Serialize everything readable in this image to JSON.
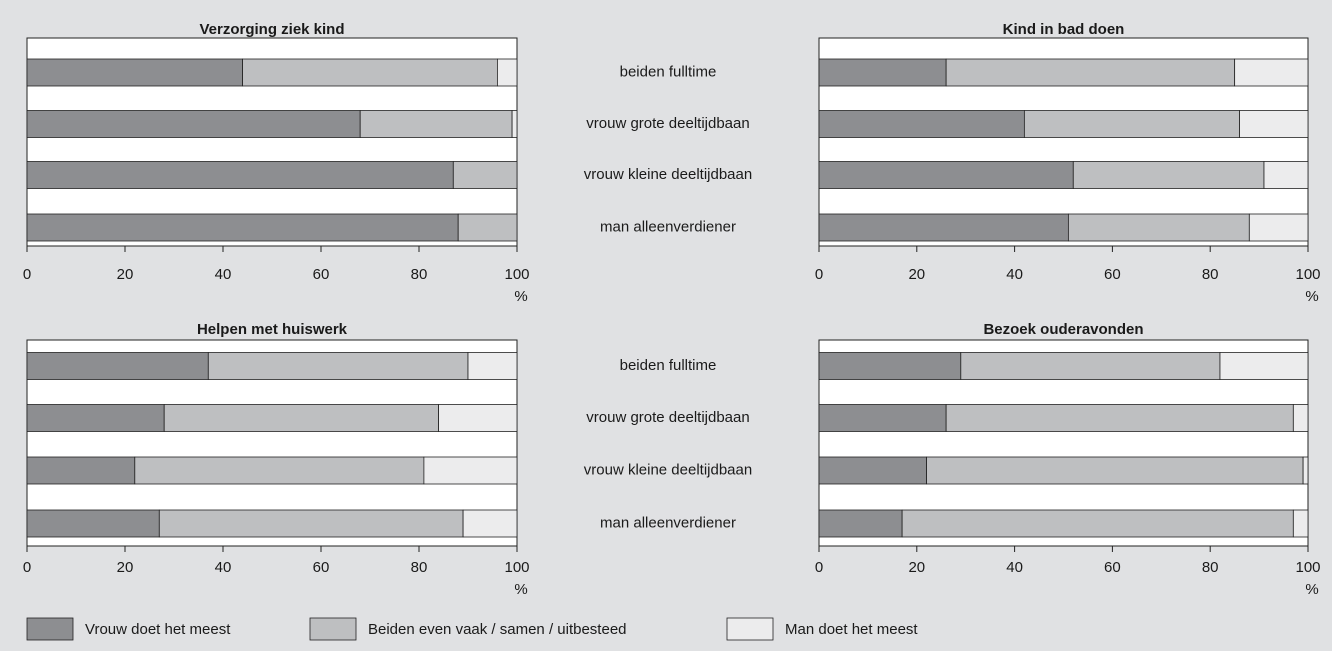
{
  "legend": [
    {
      "name": "Vrouw doet het meest",
      "color": "#8d8e91"
    },
    {
      "name": "Beiden even vaak / samen  / uitbesteed",
      "color": "#bebfc1"
    },
    {
      "name": "Man doet het meest",
      "color": "#ececed"
    }
  ],
  "chart_data": [
    {
      "type": "bar",
      "stacked": true,
      "orientation": "horizontal",
      "title": "Verzorging ziek kind",
      "categories": [
        "beiden fulltime",
        "vrouw grote deeltijdbaan",
        "vrouw kleine deeltijdbaan",
        "man alleenverdiener"
      ],
      "series": [
        {
          "values": [
            44,
            68,
            87,
            88
          ]
        },
        {
          "values": [
            52,
            31,
            13,
            12
          ]
        },
        {
          "values": [
            4,
            1,
            0,
            0
          ]
        }
      ],
      "xlim": [
        0,
        100
      ],
      "xticks": [
        0,
        20,
        40,
        60,
        80,
        100
      ],
      "x_unit": "%"
    },
    {
      "type": "bar",
      "stacked": true,
      "orientation": "horizontal",
      "title": "Kind in bad doen",
      "series": [
        {
          "values": [
            26,
            42,
            52,
            51
          ]
        },
        {
          "values": [
            59,
            44,
            39,
            37
          ]
        },
        {
          "values": [
            15,
            14,
            9,
            12
          ]
        }
      ],
      "xlim": [
        0,
        100
      ],
      "xticks": [
        0,
        20,
        40,
        60,
        80,
        100
      ],
      "x_unit": "%"
    },
    {
      "type": "bar",
      "stacked": true,
      "orientation": "horizontal",
      "title": "Helpen met huiswerk",
      "categories": [
        "beiden fulltime",
        "vrouw grote deeltijdbaan",
        "vrouw kleine deeltijdbaan",
        "man alleenverdiener"
      ],
      "series": [
        {
          "values": [
            37,
            28,
            22,
            27
          ]
        },
        {
          "values": [
            53,
            56,
            59,
            62
          ]
        },
        {
          "values": [
            10,
            16,
            19,
            11
          ]
        }
      ],
      "xlim": [
        0,
        100
      ],
      "xticks": [
        0,
        20,
        40,
        60,
        80,
        100
      ],
      "x_unit": "%"
    },
    {
      "type": "bar",
      "stacked": true,
      "orientation": "horizontal",
      "title": "Bezoek ouderavonden",
      "series": [
        {
          "values": [
            29,
            26,
            22,
            17
          ]
        },
        {
          "values": [
            53,
            71,
            77,
            80
          ]
        },
        {
          "values": [
            18,
            3,
            1,
            3
          ]
        }
      ],
      "xlim": [
        0,
        100
      ],
      "xticks": [
        0,
        20,
        40,
        60,
        80,
        100
      ],
      "x_unit": "%"
    }
  ]
}
